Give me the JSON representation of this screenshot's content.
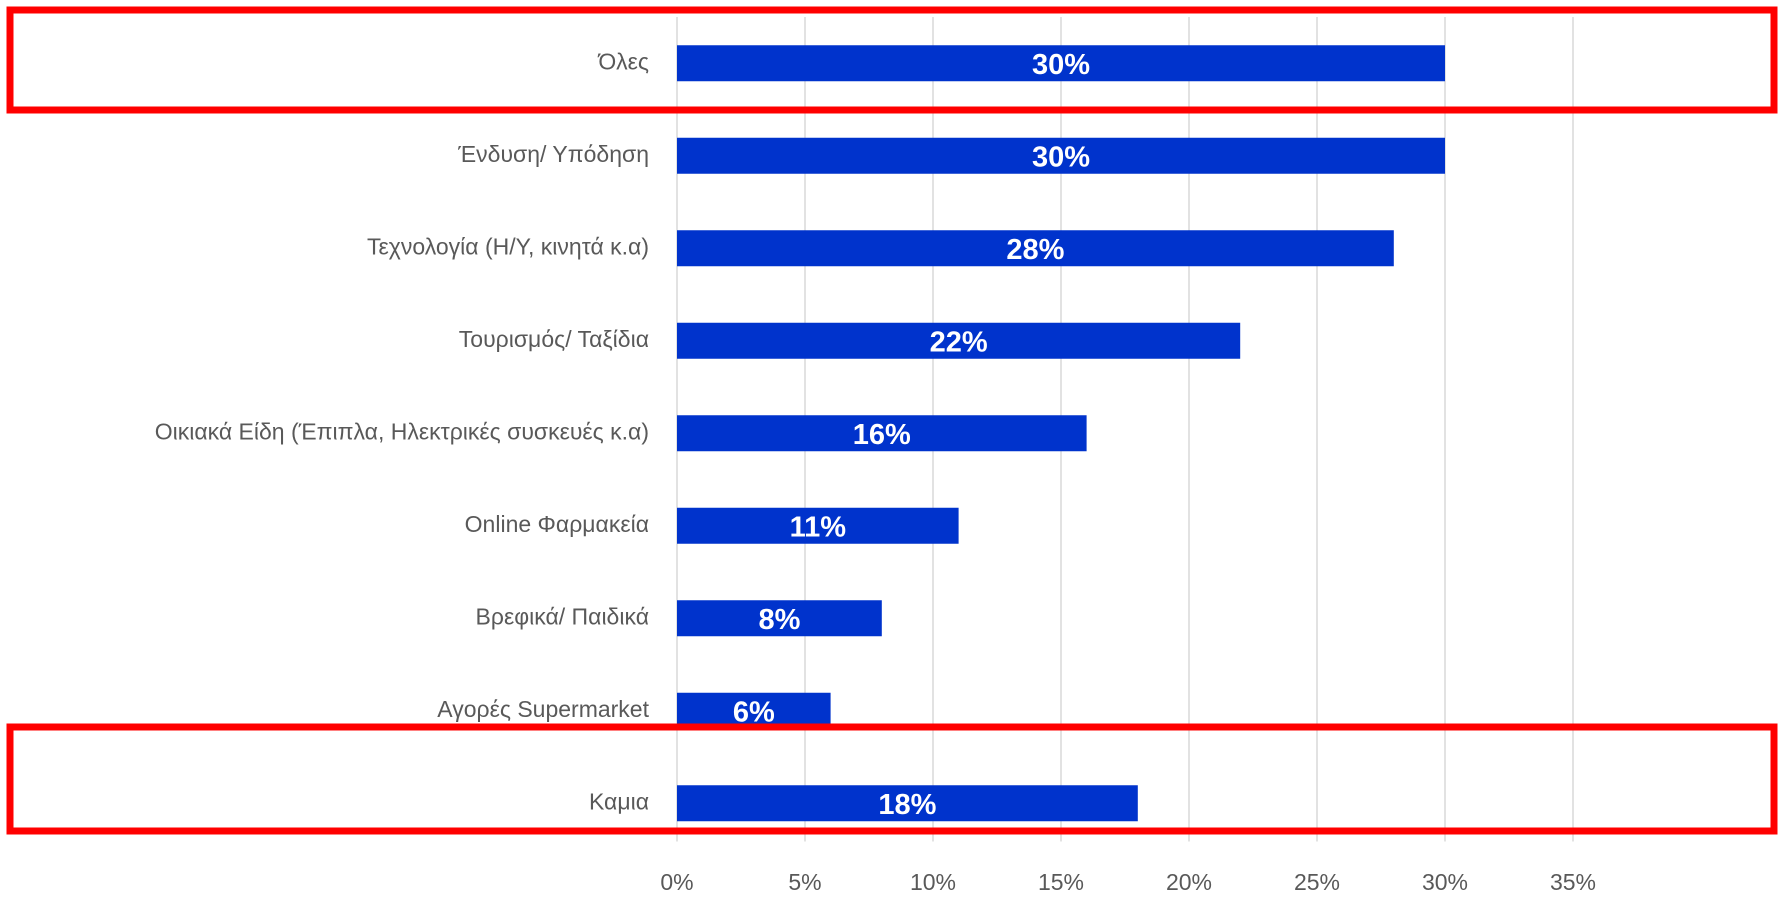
{
  "chart_data": {
    "type": "bar",
    "orientation": "horizontal",
    "categories": [
      "Όλες",
      "Ένδυση/ Υπόδηση",
      "Τεχνολογία (Η/Υ, κινητά κ.α)",
      "Τουρισμός/ Ταξίδια",
      "Οικιακά Είδη (Έπιπλα, Ηλεκτρικές συσκευές κ.α)",
      "Online Φαρμακεία",
      "Βρεφικά/ Παιδικά",
      "Αγορές Supermarket",
      "Καμια"
    ],
    "values": [
      30,
      30,
      28,
      22,
      16,
      11,
      8,
      6,
      18
    ],
    "value_labels": [
      "30%",
      "30%",
      "28%",
      "22%",
      "16%",
      "11%",
      "8%",
      "6%",
      "18%"
    ],
    "color": "#0033cc",
    "xlim": [
      0,
      35
    ],
    "xticks": [
      {
        "value": 0,
        "label": "0%"
      },
      {
        "value": 5,
        "label": "5%"
      },
      {
        "value": 10,
        "label": "10%"
      },
      {
        "value": 15,
        "label": "15%"
      },
      {
        "value": 20,
        "label": "20%"
      },
      {
        "value": 25,
        "label": "25%"
      },
      {
        "value": 30,
        "label": "30%"
      },
      {
        "value": 35,
        "label": "35%"
      }
    ],
    "grid": true
  }
}
